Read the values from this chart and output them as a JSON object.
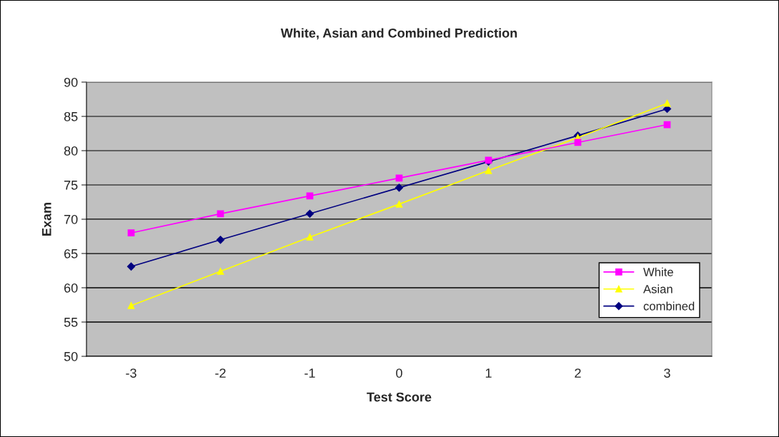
{
  "chart_data": {
    "type": "line",
    "title": "White, Asian and Combined Prediction",
    "xlabel": "Test Score",
    "ylabel": "Exam",
    "categories": [
      "-3",
      "-2",
      "-1",
      "0",
      "1",
      "2",
      "3"
    ],
    "series": [
      {
        "name": "White",
        "color": "#ff00ff",
        "marker": "square",
        "values": [
          68.0,
          70.8,
          73.4,
          76.0,
          78.6,
          81.2,
          83.8
        ]
      },
      {
        "name": "Asian",
        "color": "#ffff00",
        "marker": "triangle",
        "values": [
          57.4,
          62.4,
          67.4,
          72.2,
          77.1,
          81.9,
          86.9
        ]
      },
      {
        "name": "combined",
        "color": "#000080",
        "marker": "diamond",
        "values": [
          63.1,
          67.0,
          70.8,
          74.6,
          78.4,
          82.2,
          86.1
        ]
      }
    ],
    "ylim": [
      50,
      90
    ],
    "yticks": [
      50,
      55,
      60,
      65,
      70,
      75,
      80,
      85,
      90
    ],
    "grid": "y",
    "legend": "bottom right",
    "line_style": "solid"
  }
}
